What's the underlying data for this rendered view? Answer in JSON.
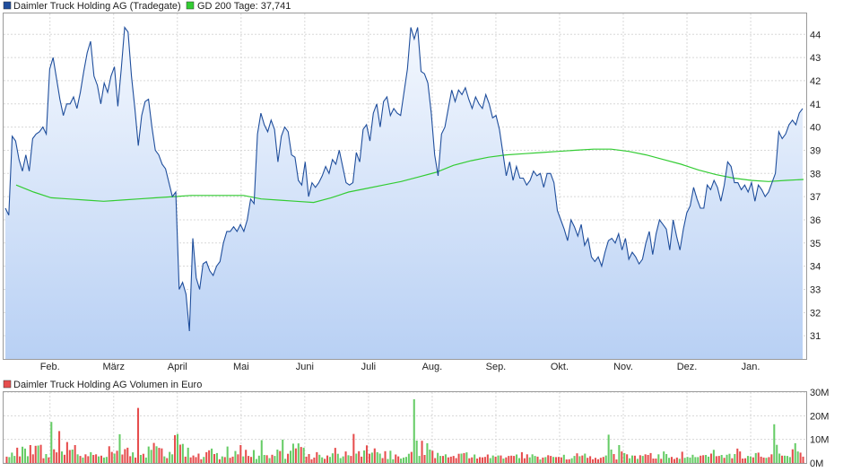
{
  "chart_data": [
    {
      "type": "line",
      "legend": [
        {
          "name": "Daimler Truck Holding AG (Tradegate)",
          "color": "#1f4e9c"
        },
        {
          "name": "GD 200 Tage: 37,741",
          "color": "#33cc33"
        }
      ],
      "x_tick_labels": [
        "Feb.",
        "März",
        "April",
        "Mai",
        "Juni",
        "Juli",
        "Aug.",
        "Sep.",
        "Okt.",
        "Nov.",
        "Dez.",
        "Jan."
      ],
      "y_tick_labels": [
        "31",
        "32",
        "33",
        "34",
        "35",
        "36",
        "37",
        "38",
        "39",
        "40",
        "41",
        "42",
        "43",
        "44"
      ],
      "ylim": [
        30.0,
        44.9
      ],
      "grid": true,
      "legend_position": "top-left",
      "series": [
        {
          "name": "Daimler Truck Holding AG (Tradegate)",
          "color": "#1f4e9c",
          "values": [
            36.5,
            36.2,
            39.6,
            39.4,
            38.6,
            38.1,
            38.8,
            38.1,
            39.5,
            39.7,
            39.8,
            40.0,
            39.7,
            42.5,
            43.0,
            42.1,
            41.2,
            40.5,
            41.0,
            41.0,
            41.3,
            40.8,
            41.5,
            42.4,
            43.2,
            43.7,
            42.2,
            41.8,
            41.0,
            41.9,
            41.5,
            42.2,
            42.6,
            40.9,
            42.5,
            44.3,
            44.1,
            42.2,
            40.8,
            39.2,
            40.5,
            41.1,
            41.2,
            40.0,
            39.0,
            38.8,
            38.4,
            38.2,
            37.6,
            37.0,
            37.2,
            33.0,
            33.3,
            32.8,
            31.2,
            35.2,
            33.5,
            33.0,
            34.1,
            34.2,
            33.8,
            33.6,
            34.0,
            34.2,
            35.0,
            35.5,
            35.5,
            35.7,
            35.5,
            35.8,
            35.5,
            36.0,
            36.9,
            36.7,
            39.7,
            40.6,
            40.1,
            39.8,
            40.3,
            39.9,
            38.5,
            39.6,
            40.0,
            39.8,
            38.8,
            38.7,
            37.7,
            37.5,
            38.5,
            37.0,
            37.6,
            37.4,
            37.6,
            37.9,
            38.3,
            38.0,
            38.6,
            38.4,
            39.0,
            38.3,
            37.6,
            37.5,
            37.6,
            38.9,
            38.5,
            39.9,
            40.1,
            39.4,
            40.6,
            41.0,
            40.0,
            41.1,
            41.3,
            40.5,
            40.8,
            40.6,
            40.5,
            41.5,
            42.5,
            44.3,
            43.8,
            44.3,
            42.4,
            42.3,
            41.9,
            40.6,
            38.8,
            37.9,
            39.7,
            40.0,
            40.8,
            41.6,
            41.1,
            41.6,
            41.4,
            41.7,
            41.2,
            40.8,
            41.3,
            41.0,
            40.8,
            41.4,
            41.0,
            40.4,
            40.5,
            39.9,
            38.9,
            37.9,
            38.5,
            37.7,
            38.3,
            37.8,
            37.8,
            37.5,
            37.7,
            38.1,
            37.9,
            38.0,
            37.4,
            38.0,
            38.0,
            37.6,
            36.4,
            36.0,
            35.6,
            35.1,
            36.0,
            35.7,
            35.3,
            35.8,
            34.9,
            35.2,
            34.4,
            34.2,
            34.4,
            34.0,
            34.6,
            35.1,
            35.2,
            35.0,
            35.4,
            34.7,
            35.2,
            34.3,
            34.6,
            34.4,
            34.1,
            34.3,
            35.0,
            35.5,
            34.5,
            35.4,
            36.0,
            35.8,
            35.6,
            34.7,
            36.0,
            35.3,
            34.7,
            35.6,
            36.3,
            36.6,
            37.4,
            36.9,
            36.5,
            36.5,
            37.5,
            37.3,
            37.7,
            37.4,
            36.8,
            37.5,
            38.5,
            38.3,
            37.6,
            37.6,
            37.3,
            37.5,
            37.2,
            37.6,
            36.8,
            37.5,
            37.3,
            37.0,
            37.2,
            37.6,
            38.0,
            39.8,
            39.5,
            39.7,
            40.1,
            40.3,
            40.1,
            40.6,
            40.8
          ]
        },
        {
          "name": "GD 200 Tage: 37,741",
          "color": "#33cc33",
          "values": [
            37.5,
            37.2,
            36.95,
            36.9,
            36.85,
            36.8,
            36.85,
            36.9,
            36.95,
            37.0,
            37.05,
            37.05,
            37.05,
            37.05,
            36.9,
            36.85,
            36.8,
            36.75,
            36.95,
            37.2,
            37.35,
            37.5,
            37.65,
            37.85,
            38.05,
            38.35,
            38.55,
            38.7,
            38.8,
            38.85,
            38.9,
            38.95,
            39.0,
            39.05,
            39.05,
            38.95,
            38.8,
            38.6,
            38.4,
            38.15,
            37.95,
            37.8,
            37.7,
            37.65,
            37.7,
            37.741
          ]
        },
        {
          "name": "Daimler Truck Holding AG Volumen in Euro",
          "color": "#e64d4d",
          "values": [
            2.7,
            2.5,
            4.4,
            3.0,
            6.5,
            2.8,
            6.9,
            6.1,
            2.9,
            7.6,
            3.7,
            7.3,
            7.4,
            7.7,
            2.0,
            3.8,
            2.4,
            17.4,
            5.8,
            4.5,
            13.5,
            4.9,
            3.5,
            8.9,
            5.5,
            5.7,
            7.6,
            3.7,
            3.0,
            2.3,
            3.7,
            2.9,
            4.6,
            3.4,
            3.7,
            2.8,
            3.1,
            2.3,
            2.6,
            7.1,
            4.7,
            4.0,
            5.2,
            12.2,
            3.6,
            5.9,
            6.5,
            2.9,
            4.5,
            2.3,
            23.3,
            3.4,
            3.9,
            2.3,
            7.0,
            5.6,
            8.5,
            7.1,
            6.4,
            6.2,
            2.8,
            2.1,
            4.7,
            3.7,
            11.8,
            12.3,
            7.8,
            8.1,
            2.7,
            6.5,
            2.4,
            3.2,
            2.5,
            4.0,
            1.6,
            2.6,
            4.6,
            5.4,
            6.1,
            3.8,
            4.2,
            1.6,
            2.8,
            2.5,
            7.0,
            2.2,
            2.7,
            5.1,
            3.7,
            7.6,
            2.8,
            5.6,
            3.0,
            2.6,
            5.5,
            1.7,
            3.1,
            9.7,
            3.4,
            3.3,
            2.1,
            3.5,
            3.0,
            5.7,
            5.1,
            9.9,
            1.8,
            3.9,
            5.2,
            8.2,
            6.2,
            8.3,
            6.8,
            6.5,
            2.7,
            3.8,
            1.6,
            2.3,
            4.6,
            3.5,
            2.4,
            1.8,
            3.2,
            2.6,
            4.1,
            6.4,
            3.9,
            2.1,
            2.8,
            4.9,
            3.3,
            3.0,
            12.3,
            4.0,
            5.0,
            2.7,
            5.3,
            7.5,
            3.9,
            4.4,
            6.2,
            4.6,
            4.0,
            2.1,
            5.0,
            1.7,
            5.2,
            1.6,
            3.6,
            2.8,
            1.9,
            2.3,
            2.6,
            3.9,
            4.7,
            27.0,
            9.5,
            3.0,
            9.4,
            3.4,
            8.4,
            5.7,
            5.2,
            2.1,
            4.3,
            3.0,
            3.0,
            3.7,
            2.4,
            2.7,
            3.0,
            2.1,
            3.9,
            4.0,
            4.2,
            4.5,
            2.0,
            2.4,
            3.6,
            1.9,
            2.5,
            2.4,
            2.6,
            3.6,
            2.1,
            3.2,
            2.7,
            3.2,
            3.2,
            1.9,
            2.4,
            3.0,
            3.1,
            3.0,
            3.6,
            2.1,
            4.6,
            2.0,
            3.7,
            2.4,
            3.7,
            3.0,
            2.7,
            1.5,
            2.3,
            2.5,
            3.3,
            3.0,
            2.6,
            2.5,
            2.6,
            2.4,
            3.5,
            1.5,
            1.6,
            2.0,
            3.0,
            4.1,
            2.9,
            3.2,
            4.0,
            2.2,
            2.9,
            1.6,
            2.2,
            1.6,
            2.2,
            2.6,
            3.2,
            12.0,
            5.7,
            3.8,
            1.5,
            7.6,
            4.9,
            4.2,
            3.7,
            2.0,
            3.2,
            3.1,
            1.8,
            3.3,
            3.0,
            3.7,
            3.4,
            4.2,
            1.9,
            1.9,
            3.7,
            1.8,
            4.9,
            3.8,
            2.2,
            2.6,
            1.7,
            2.3,
            1.8,
            4.8,
            2.2,
            2.6,
            2.3,
            3.5,
            2.5,
            2.5,
            3.1,
            3.3,
            3.4,
            2.7,
            4.0,
            5.6,
            2.9,
            3.0,
            3.4,
            2.2,
            3.5,
            3.9,
            2.0,
            3.8,
            6.1,
            4.9,
            1.9,
            2.0,
            3.0,
            2.8,
            2.4,
            4.2,
            4.4,
            2.7,
            2.3,
            2.2,
            2.5,
            3.7,
            16.4,
            7.7,
            4.0,
            3.1,
            3.1,
            3.0,
            2.5,
            5.8,
            8.4,
            4.9,
            4.4,
            2.7
          ],
          "up_color": "#66cc66",
          "up": [
            false,
            true,
            true,
            true,
            false,
            false,
            true,
            true,
            true,
            false,
            false,
            false,
            true,
            false,
            false,
            true,
            false,
            true,
            false,
            false,
            false,
            true,
            false,
            false,
            false,
            true,
            false,
            true,
            false,
            true,
            false,
            false,
            true,
            false,
            false,
            true,
            false,
            true,
            true,
            false,
            false,
            true,
            false,
            true,
            false,
            false,
            false,
            false,
            true,
            false,
            false,
            true,
            false,
            true,
            true,
            true,
            false,
            true,
            false,
            false,
            true,
            false,
            true,
            true,
            false,
            true,
            false,
            true,
            false,
            true,
            false,
            false,
            false,
            false,
            false,
            true,
            false,
            false,
            true,
            false,
            true,
            false,
            true,
            false,
            true,
            false,
            false,
            true,
            false,
            false,
            true,
            false,
            false,
            false,
            true,
            true,
            true,
            true,
            true,
            false,
            true,
            false,
            true,
            true,
            false,
            true,
            true,
            false,
            true,
            true,
            false,
            true,
            false,
            true,
            false,
            false,
            false,
            false,
            false,
            true,
            true,
            false,
            false,
            true,
            true,
            false,
            true,
            true,
            true,
            false,
            true,
            false,
            false,
            true,
            false,
            false,
            true,
            false,
            false,
            true,
            false,
            true,
            true,
            false,
            false,
            true,
            true,
            true,
            false,
            false,
            true,
            true,
            true,
            true,
            false,
            true,
            true,
            true,
            false,
            false,
            true,
            true,
            false,
            false,
            true,
            true,
            false,
            true,
            false,
            false,
            false,
            false,
            false,
            true,
            false,
            true,
            false,
            false,
            true,
            false,
            false,
            false,
            false,
            false,
            true,
            true,
            false,
            true,
            false,
            true,
            false,
            false,
            false,
            false,
            true,
            true,
            false,
            false,
            false,
            true,
            true,
            true,
            false,
            true,
            false,
            true,
            false,
            false,
            true,
            false,
            false,
            false,
            true,
            false,
            false,
            true,
            true,
            false,
            true,
            false,
            true,
            false,
            false,
            false,
            false,
            false,
            false,
            false,
            true,
            true,
            true,
            false,
            false,
            true,
            false,
            true,
            false,
            true,
            true,
            false,
            true,
            false,
            true,
            false,
            false,
            false,
            false,
            false,
            true,
            false,
            true,
            true,
            true,
            false,
            false,
            false,
            true,
            false,
            true,
            true,
            true,
            true,
            true,
            true,
            false,
            false,
            true,
            true,
            false,
            true,
            false,
            false,
            true,
            false,
            true,
            true,
            false,
            true,
            false,
            false,
            false,
            false,
            true,
            true,
            false,
            true,
            false,
            false,
            false,
            true,
            false,
            false,
            true,
            true,
            true,
            false,
            true,
            true,
            true,
            false,
            true,
            true,
            false,
            false,
            true
          ]
        }
      ],
      "volume_ylim": [
        0,
        30
      ],
      "volume_tick_labels": [
        "30M",
        "20M",
        "10M",
        "0M"
      ],
      "volume_legend": {
        "name": "Daimler Truck Holding AG Volumen in Euro",
        "color": "#e64d4d"
      }
    }
  ]
}
